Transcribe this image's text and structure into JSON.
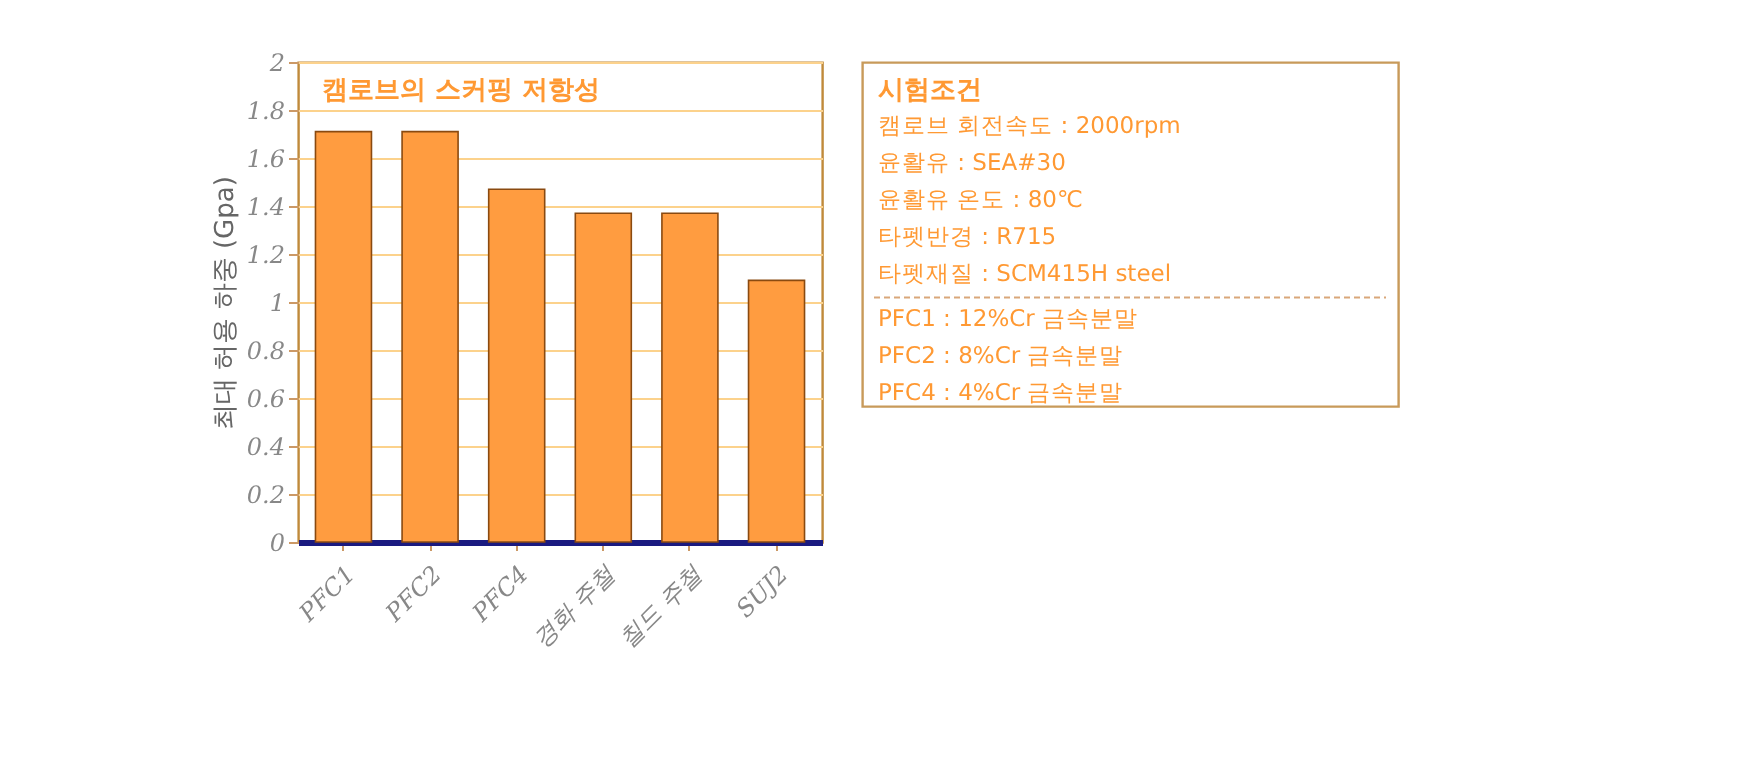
{
  "chart_data": {
    "type": "bar",
    "title": "캠로브의 스커핑 저항성",
    "ylabel": "최대 허용 하중 (Gpa)",
    "categories": [
      "PFC1",
      "PFC2",
      "PFC4",
      "경화 주철",
      "칠드 주철",
      "SUJ2"
    ],
    "values": [
      1.71,
      1.71,
      1.47,
      1.37,
      1.37,
      1.09
    ],
    "color": "#ff9c40",
    "ylim": [
      0,
      2
    ],
    "yticks": [
      0,
      0.2,
      0.4,
      0.6,
      0.8,
      1,
      1.2,
      1.4,
      1.6,
      1.8,
      2
    ],
    "grid": "y",
    "annotations": [
      "시험조건",
      "캠로브 회전속도 : 2000rpm",
      "윤활유 : SEA#30",
      "윤활유 온도 : 80℃",
      "타펫반경 : R715",
      "타펫재질 : SCM415H  steel",
      "PFC1 : 12%Cr 금속분말",
      "PFC2 : 8%Cr 금속분말",
      "PFC4 : 4%Cr 금속분말"
    ]
  }
}
